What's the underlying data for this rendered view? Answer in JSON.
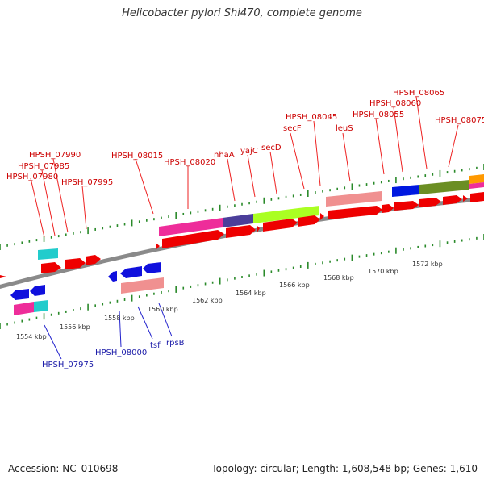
{
  "title": "Helicobacter pylori Shi470, complete genome",
  "footer": {
    "accession": "Accession: NC_010698",
    "summary": "Topology: circular; Length: 1,608,548 bp; Genes: 1,610"
  },
  "colors": {
    "backbone": "#8a8a8a",
    "tick": "#2a8a2a",
    "forward_gene": "#ee0000",
    "reverse_gene": "#1010dd",
    "label_red": "#cc0000",
    "label_blue": "#1a1aa8"
  },
  "scale_labels": [
    "1554 kbp",
    "1556 kbp",
    "1558 kbp",
    "1560 kbp",
    "1562 kbp",
    "1564 kbp",
    "1566 kbp",
    "1568 kbp",
    "1570 kbp",
    "1572 kbp"
  ],
  "forward_labels": [
    "HPSH_07990",
    "HPSH_07985",
    "HPSH_07980",
    "HPSH_07995",
    "HPSH_08015",
    "HPSH_08020",
    "nhaA",
    "yajC",
    "secD",
    "secF",
    "HPSH_08045",
    "leuS",
    "HPSH_08055",
    "HPSH_08060",
    "HPSH_08065",
    "HPSH_08075"
  ],
  "reverse_labels": [
    "HPSH_07975",
    "HPSH_08000",
    "tsf",
    "rpsB"
  ]
}
